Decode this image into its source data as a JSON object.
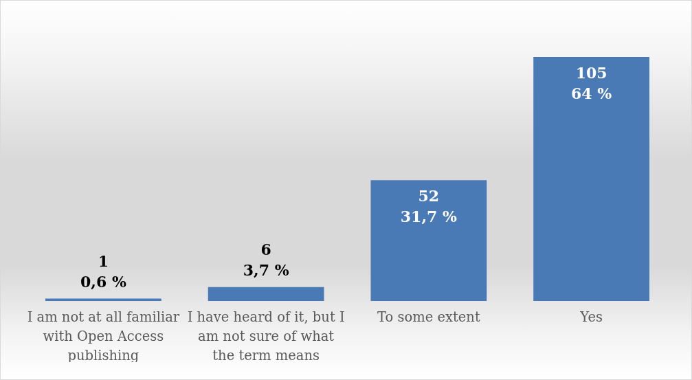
{
  "chart_data": {
    "type": "bar",
    "categories": [
      "I am not at all familiar with Open Access publishing",
      "I have heard of it, but I am not sure of what the term means",
      "To some extent",
      "Yes"
    ],
    "values": [
      1,
      6,
      52,
      105
    ],
    "value_labels": [
      "1\n0,6 %",
      "6\n3,7 %",
      "52\n31,7 %",
      "105\n64 %"
    ],
    "color": "#4a7ab6",
    "tick_labels": "x"
  }
}
